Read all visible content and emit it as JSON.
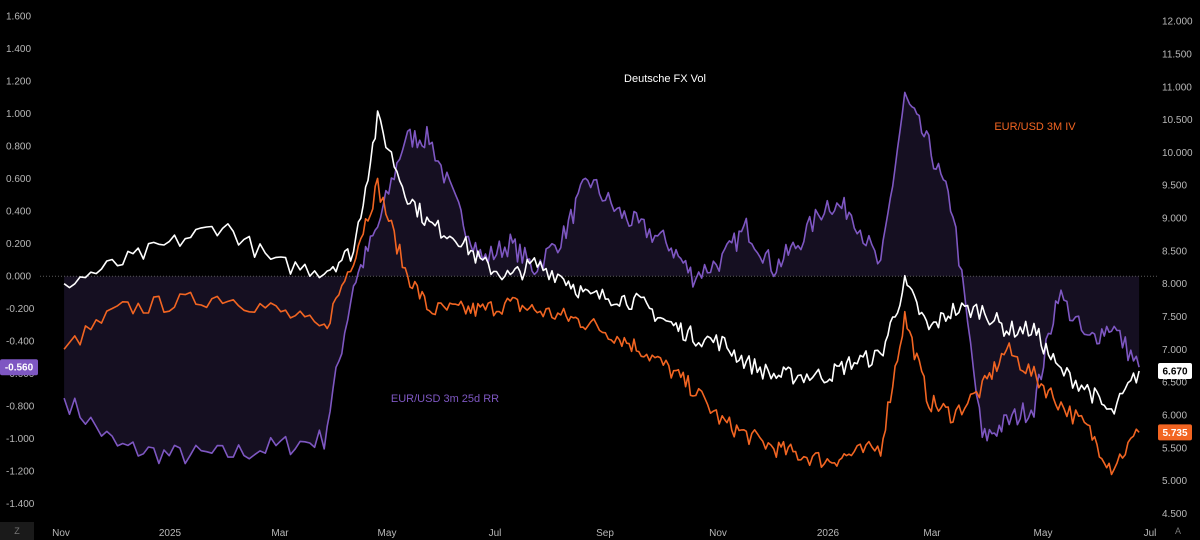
{
  "chart_data": {
    "type": "line",
    "title": "Deutsche FX Vol",
    "x_ticks": [
      "Nov",
      "2025",
      "Mar",
      "May",
      "Jul",
      "Sep",
      "Nov",
      "2026",
      "Mar",
      "May",
      "Jul"
    ],
    "left_axis": {
      "ylim": [
        -1.5,
        1.65
      ],
      "ticks": [
        "1.600",
        "1.400",
        "1.200",
        "1.000",
        "0.800",
        "0.600",
        "0.400",
        "0.200",
        "0.000",
        "-0.200",
        "-0.400",
        "-0.600",
        "-0.800",
        "-1.000",
        "-1.200",
        "-1.400"
      ],
      "tick_values": [
        1.6,
        1.4,
        1.2,
        1.0,
        0.8,
        0.6,
        0.4,
        0.2,
        0.0,
        -0.2,
        -0.4,
        -0.6,
        -0.8,
        -1.0,
        -1.2,
        -1.4
      ]
    },
    "right_axis": {
      "ylim": [
        4.4,
        12.2
      ],
      "ticks": [
        "12.000",
        "11.500",
        "11.000",
        "10.500",
        "10.000",
        "9.500",
        "9.000",
        "8.500",
        "8.000",
        "7.500",
        "7.000",
        "6.500",
        "6.000",
        "5.500",
        "5.000",
        "4.500"
      ],
      "tick_values": [
        12.0,
        11.5,
        11.0,
        10.5,
        10.0,
        9.5,
        9.0,
        8.5,
        8.0,
        7.5,
        7.0,
        6.5,
        6.0,
        5.5,
        5.0,
        4.5
      ]
    },
    "x": [
      "2024-10-15",
      "2024-11-15",
      "2024-12-15",
      "2025-01-15",
      "2025-02-15",
      "2025-03-15",
      "2025-04-01",
      "2025-04-15",
      "2025-05-01",
      "2025-05-15",
      "2025-06-01",
      "2025-06-15",
      "2025-07-01",
      "2025-07-15",
      "2025-08-01",
      "2025-08-15",
      "2025-09-01",
      "2025-09-15",
      "2025-10-01",
      "2025-10-15",
      "2025-11-01",
      "2025-11-15",
      "2025-12-01",
      "2025-12-15",
      "2026-01-01",
      "2026-01-15",
      "2026-02-01",
      "2026-02-15",
      "2026-03-01",
      "2026-03-15",
      "2026-04-01",
      "2026-04-15",
      "2026-05-01",
      "2026-05-15",
      "2026-06-01",
      "2026-06-15",
      "2026-07-01"
    ],
    "series": [
      {
        "name": "EUR/USD 3m 25d RR",
        "axis": "left",
        "color": "#7e57c2",
        "last_label": "-0.560",
        "values": [
          -0.75,
          -1.05,
          -1.1,
          -1.1,
          -1.05,
          -1.0,
          -0.05,
          0.3,
          0.85,
          0.85,
          0.4,
          0.1,
          0.2,
          0.05,
          0.25,
          0.6,
          0.4,
          0.3,
          0.2,
          0.0,
          0.1,
          0.3,
          0.05,
          0.2,
          0.45,
          0.4,
          0.05,
          1.1,
          0.8,
          0.4,
          -1.0,
          -0.9,
          -0.8,
          -0.1,
          -0.4,
          -0.3,
          -0.56
        ]
      },
      {
        "name": "EUR/USD 3M IV",
        "axis": "right",
        "color": "#f26522",
        "last_label": "5.735",
        "values": [
          7.0,
          7.6,
          7.7,
          7.8,
          7.6,
          7.3,
          8.4,
          9.5,
          8.2,
          7.6,
          7.6,
          7.6,
          7.7,
          7.6,
          7.5,
          7.4,
          7.2,
          7.0,
          6.7,
          6.4,
          5.9,
          5.7,
          5.5,
          5.4,
          5.3,
          5.4,
          5.5,
          7.5,
          6.2,
          6.0,
          6.4,
          7.0,
          6.6,
          6.2,
          5.8,
          5.2,
          5.735
        ]
      },
      {
        "name": "",
        "axis": "right",
        "color": "#ffffff",
        "last_label": "6.670",
        "values": [
          8.0,
          8.3,
          8.6,
          8.9,
          8.3,
          8.2,
          8.5,
          10.5,
          9.4,
          8.9,
          8.7,
          8.3,
          8.1,
          8.3,
          8.1,
          7.8,
          7.8,
          7.7,
          7.4,
          7.2,
          7.1,
          6.8,
          6.6,
          6.6,
          6.6,
          6.8,
          6.9,
          8.0,
          7.3,
          7.6,
          7.6,
          7.3,
          7.3,
          6.7,
          6.4,
          6.0,
          6.67
        ]
      }
    ],
    "annotations": [
      {
        "text": "EUR/USD 3m 25d RR",
        "color": "#7e57c2"
      },
      {
        "text": "EUR/USD 3M IV",
        "color": "#f26522"
      }
    ],
    "legend": "none",
    "grid": false
  },
  "corner_left": "Z",
  "corner_right": "A"
}
